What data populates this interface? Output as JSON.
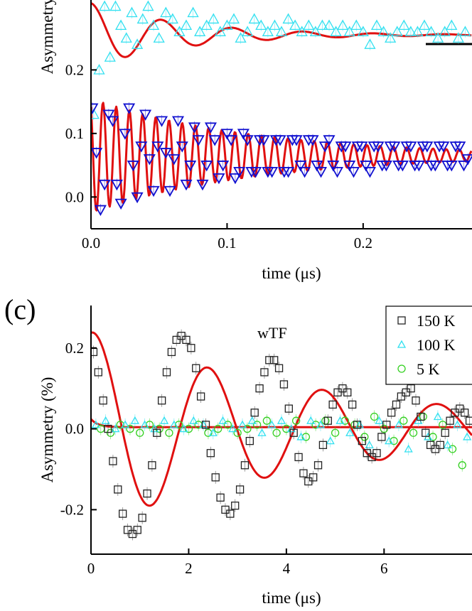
{
  "chart_data": [
    {
      "id": "top",
      "type": "scatter",
      "xlabel": "time (μs)",
      "ylabel": "Asymmetry (%)",
      "xlim": [
        0,
        0.28
      ],
      "ylim": [
        -0.05,
        0.31
      ],
      "xticks": [
        0.0,
        0.1,
        0.2
      ],
      "xtick_labels": [
        "0.0",
        "0.1",
        "0.2"
      ],
      "yticks": [
        0.0,
        0.1,
        0.2
      ],
      "ytick_labels": [
        "0.0",
        "0.1",
        "0.2"
      ],
      "series": [
        {
          "color": "#33e0f0",
          "marker": "triangle-up",
          "x": [
            0.002,
            0.006,
            0.01,
            0.014,
            0.018,
            0.022,
            0.026,
            0.03,
            0.034,
            0.038,
            0.042,
            0.046,
            0.05,
            0.055,
            0.06,
            0.065,
            0.07,
            0.075,
            0.08,
            0.085,
            0.09,
            0.095,
            0.1,
            0.105,
            0.11,
            0.115,
            0.12,
            0.125,
            0.13,
            0.135,
            0.14,
            0.145,
            0.15,
            0.155,
            0.16,
            0.165,
            0.17,
            0.175,
            0.18,
            0.185,
            0.19,
            0.195,
            0.2,
            0.205,
            0.21,
            0.215,
            0.22,
            0.225,
            0.23,
            0.235,
            0.24,
            0.245,
            0.25,
            0.255,
            0.26,
            0.265,
            0.27,
            0.275
          ],
          "y": [
            0.13,
            0.2,
            0.3,
            0.22,
            0.3,
            0.27,
            0.25,
            0.29,
            0.24,
            0.28,
            0.3,
            0.27,
            0.25,
            0.29,
            0.28,
            0.26,
            0.27,
            0.29,
            0.26,
            0.27,
            0.28,
            0.26,
            0.27,
            0.28,
            0.25,
            0.26,
            0.28,
            0.27,
            0.26,
            0.27,
            0.26,
            0.28,
            0.27,
            0.26,
            0.27,
            0.26,
            0.27,
            0.27,
            0.26,
            0.27,
            0.26,
            0.27,
            0.26,
            0.24,
            0.27,
            0.26,
            0.25,
            0.26,
            0.27,
            0.26,
            0.26,
            0.27,
            0.26,
            0.25,
            0.26,
            0.27,
            0.25,
            0.26
          ]
        },
        {
          "color": "#1010d0",
          "marker": "triangle-down",
          "fit_color": "#e01010",
          "x": [
            0.001,
            0.004,
            0.007,
            0.01,
            0.013,
            0.016,
            0.019,
            0.022,
            0.025,
            0.028,
            0.031,
            0.034,
            0.037,
            0.04,
            0.043,
            0.046,
            0.049,
            0.052,
            0.055,
            0.058,
            0.061,
            0.064,
            0.067,
            0.07,
            0.073,
            0.076,
            0.079,
            0.082,
            0.085,
            0.088,
            0.091,
            0.094,
            0.097,
            0.1,
            0.103,
            0.106,
            0.109,
            0.112,
            0.115,
            0.118,
            0.121,
            0.124,
            0.127,
            0.13,
            0.133,
            0.136,
            0.139,
            0.142,
            0.145,
            0.148,
            0.151,
            0.154,
            0.157,
            0.16,
            0.163,
            0.166,
            0.169,
            0.172,
            0.175,
            0.178,
            0.181,
            0.184,
            0.187,
            0.19,
            0.193,
            0.196,
            0.199,
            0.202,
            0.205,
            0.208,
            0.211,
            0.214,
            0.217,
            0.22,
            0.223,
            0.226,
            0.229,
            0.232,
            0.235,
            0.238,
            0.241,
            0.244,
            0.247,
            0.25,
            0.253,
            0.256,
            0.259,
            0.262,
            0.265,
            0.268,
            0.271,
            0.274,
            0.277
          ],
          "y": [
            0.14,
            0.07,
            -0.02,
            0.02,
            0.13,
            0.12,
            0.02,
            -0.01,
            0.1,
            0.14,
            0.05,
            0.0,
            0.08,
            0.13,
            0.06,
            0.01,
            0.08,
            0.12,
            0.07,
            0.01,
            0.06,
            0.12,
            0.08,
            0.02,
            0.05,
            0.11,
            0.09,
            0.02,
            0.05,
            0.11,
            0.09,
            0.03,
            0.05,
            0.1,
            0.09,
            0.03,
            0.04,
            0.1,
            0.09,
            0.04,
            0.04,
            0.09,
            0.09,
            0.04,
            0.04,
            0.09,
            0.09,
            0.04,
            0.04,
            0.09,
            0.09,
            0.05,
            0.04,
            0.09,
            0.09,
            0.05,
            0.04,
            0.08,
            0.09,
            0.05,
            0.04,
            0.08,
            0.08,
            0.05,
            0.04,
            0.08,
            0.08,
            0.05,
            0.04,
            0.08,
            0.08,
            0.05,
            0.05,
            0.08,
            0.08,
            0.05,
            0.05,
            0.08,
            0.08,
            0.05,
            0.05,
            0.08,
            0.08,
            0.05,
            0.05,
            0.08,
            0.08,
            0.05,
            0.05,
            0.08,
            0.08,
            0.05,
            0.06
          ]
        }
      ]
    },
    {
      "id": "c",
      "type": "scatter",
      "panel_label": "(c)",
      "annotation": "wTF",
      "xlabel": "time (μs)",
      "ylabel": "Asymmetry (%)",
      "xlim": [
        0,
        7.8
      ],
      "ylim": [
        -0.31,
        0.305
      ],
      "xticks": [
        0,
        2,
        4,
        6
      ],
      "xtick_labels": [
        "0",
        "2",
        "4",
        "6"
      ],
      "yticks": [
        -0.2,
        0.0,
        0.2
      ],
      "ytick_labels": [
        "-0.2",
        "0.0",
        "0.2"
      ],
      "legend": [
        "150 K",
        "100 K",
        "5 K"
      ],
      "series": [
        {
          "name": "150 K",
          "color": "#222222",
          "marker": "square",
          "fit_color": "#e01010",
          "x": [
            0.05,
            0.15,
            0.25,
            0.35,
            0.45,
            0.55,
            0.65,
            0.75,
            0.85,
            0.95,
            1.05,
            1.15,
            1.25,
            1.35,
            1.45,
            1.55,
            1.65,
            1.75,
            1.85,
            1.95,
            2.05,
            2.15,
            2.25,
            2.35,
            2.45,
            2.55,
            2.65,
            2.75,
            2.85,
            2.95,
            3.05,
            3.15,
            3.25,
            3.35,
            3.45,
            3.55,
            3.65,
            3.75,
            3.85,
            3.95,
            4.05,
            4.15,
            4.25,
            4.35,
            4.45,
            4.55,
            4.65,
            4.75,
            4.85,
            4.95,
            5.05,
            5.15,
            5.25,
            5.35,
            5.45,
            5.55,
            5.65,
            5.75,
            5.85,
            5.95,
            6.05,
            6.15,
            6.25,
            6.35,
            6.45,
            6.55,
            6.65,
            6.75,
            6.85,
            6.95,
            7.05,
            7.15,
            7.25,
            7.35,
            7.45,
            7.55,
            7.65,
            7.75
          ],
          "y": [
            0.19,
            0.14,
            0.07,
            0.0,
            -0.08,
            -0.15,
            -0.21,
            -0.25,
            -0.26,
            -0.25,
            -0.22,
            -0.16,
            -0.09,
            -0.01,
            0.07,
            0.14,
            0.19,
            0.22,
            0.23,
            0.22,
            0.2,
            0.15,
            0.08,
            0.01,
            -0.06,
            -0.12,
            -0.17,
            -0.2,
            -0.21,
            -0.19,
            -0.15,
            -0.09,
            -0.03,
            0.04,
            0.1,
            0.14,
            0.17,
            0.17,
            0.15,
            0.11,
            0.05,
            -0.01,
            -0.07,
            -0.11,
            -0.13,
            -0.12,
            -0.09,
            -0.04,
            0.02,
            0.06,
            0.09,
            0.1,
            0.09,
            0.06,
            0.01,
            -0.03,
            -0.06,
            -0.07,
            -0.06,
            -0.02,
            0.01,
            0.04,
            0.06,
            0.08,
            0.09,
            0.1,
            0.07,
            0.03,
            -0.01,
            -0.04,
            -0.05,
            -0.04,
            -0.01,
            0.02,
            0.04,
            0.05,
            0.04,
            0.02
          ]
        },
        {
          "name": "100 K",
          "color": "#33e0f0",
          "marker": "triangle-up",
          "x": [
            0.1,
            0.3,
            0.5,
            0.7,
            0.9,
            1.1,
            1.3,
            1.5,
            1.7,
            1.9,
            2.1,
            2.3,
            2.5,
            2.7,
            2.9,
            3.1,
            3.3,
            3.5,
            3.7,
            3.9,
            4.1,
            4.3,
            4.5,
            4.7,
            4.9,
            5.1,
            5.3,
            5.5,
            5.7,
            5.9,
            6.1,
            6.3,
            6.5,
            6.7,
            6.9,
            7.1,
            7.3,
            7.5,
            7.7
          ],
          "y": [
            0.01,
            0.02,
            0.0,
            0.01,
            0.02,
            0.01,
            0.0,
            0.02,
            0.01,
            0.0,
            0.02,
            0.01,
            -0.01,
            0.02,
            0.0,
            0.01,
            0.02,
            -0.01,
            0.01,
            0.02,
            0.0,
            -0.02,
            0.02,
            0.01,
            -0.03,
            0.02,
            -0.01,
            0.01,
            -0.04,
            0.02,
            -0.03,
            0.01,
            -0.05,
            0.02,
            -0.02,
            0.03,
            -0.04,
            0.01,
            -0.02
          ]
        },
        {
          "name": "5 K",
          "color": "#33d020",
          "marker": "circle",
          "x": [
            0.2,
            0.4,
            0.6,
            0.8,
            1.0,
            1.2,
            1.4,
            1.6,
            1.8,
            2.0,
            2.2,
            2.4,
            2.6,
            2.8,
            3.0,
            3.2,
            3.4,
            3.6,
            3.8,
            4.0,
            4.2,
            4.4,
            4.6,
            4.8,
            5.0,
            5.2,
            5.4,
            5.6,
            5.8,
            6.0,
            6.2,
            6.4,
            6.6,
            6.8,
            7.0,
            7.2,
            7.4,
            7.6
          ],
          "y": [
            0.0,
            -0.01,
            0.01,
            0.0,
            -0.01,
            0.01,
            0.0,
            -0.01,
            0.01,
            0.0,
            0.01,
            -0.01,
            0.0,
            0.01,
            -0.01,
            0.0,
            0.01,
            0.02,
            -0.01,
            0.0,
            0.02,
            -0.02,
            0.01,
            0.02,
            -0.01,
            0.02,
            0.01,
            -0.02,
            0.03,
            0.0,
            -0.03,
            0.02,
            -0.01,
            0.03,
            -0.02,
            0.01,
            -0.05,
            -0.09
          ]
        }
      ]
    }
  ]
}
